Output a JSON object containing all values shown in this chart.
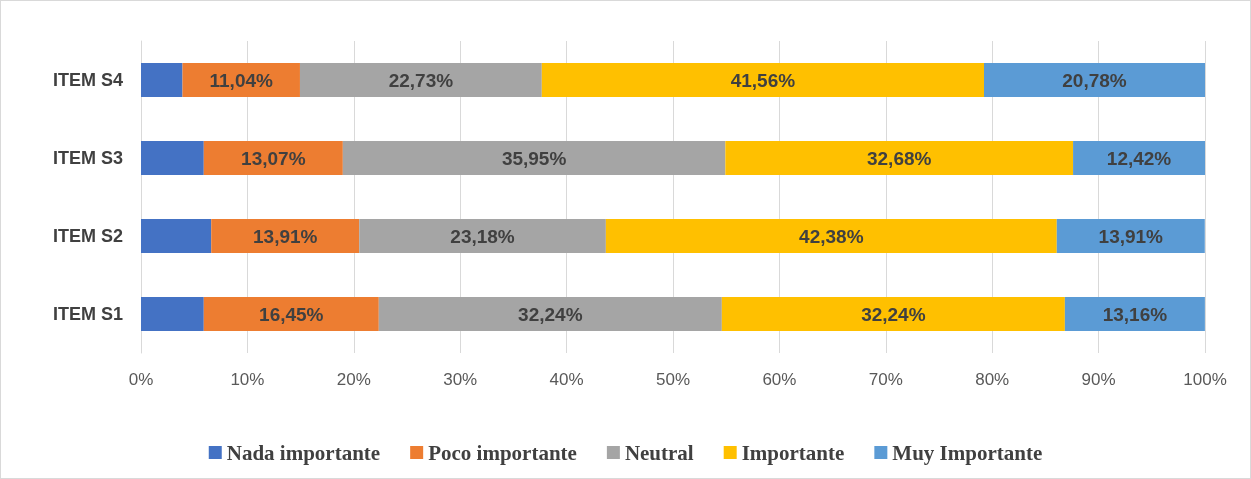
{
  "chart_data": {
    "type": "bar",
    "orientation": "horizontal",
    "stacked": true,
    "categories": [
      "ITEM S4",
      "ITEM S3",
      "ITEM S2",
      "ITEM S1"
    ],
    "series": [
      {
        "name": "Nada importante",
        "color": "#4472c4",
        "values": [
          3.9,
          5.9,
          6.6,
          5.9
        ],
        "value_labels": [
          null,
          null,
          null,
          null
        ]
      },
      {
        "name": "Poco importante",
        "color": "#ed7d31",
        "values": [
          11.04,
          13.07,
          13.91,
          16.45
        ],
        "value_labels": [
          "11,04%",
          "13,07%",
          "13,91%",
          "16,45%"
        ]
      },
      {
        "name": "Neutral",
        "color": "#a5a5a5",
        "values": [
          22.73,
          35.95,
          23.18,
          32.24
        ],
        "value_labels": [
          "22,73%",
          "35,95%",
          "23,18%",
          "32,24%"
        ]
      },
      {
        "name": "Importante",
        "color": "#ffc000",
        "values": [
          41.56,
          32.68,
          42.38,
          32.24
        ],
        "value_labels": [
          "41,56%",
          "32,68%",
          "42,38%",
          "32,24%"
        ]
      },
      {
        "name": "Muy Importante",
        "color": "#5b9bd5",
        "values": [
          20.78,
          12.42,
          13.91,
          13.16
        ],
        "value_labels": [
          "20,78%",
          "12,42%",
          "13,91%",
          "13,16%"
        ]
      }
    ],
    "xlim": [
      0,
      100
    ],
    "xticks": [
      {
        "value": 0,
        "label": "0%"
      },
      {
        "value": 10,
        "label": "10%"
      },
      {
        "value": 20,
        "label": "20%"
      },
      {
        "value": 30,
        "label": "30%"
      },
      {
        "value": 40,
        "label": "40%"
      },
      {
        "value": 50,
        "label": "50%"
      },
      {
        "value": 60,
        "label": "60%"
      },
      {
        "value": 70,
        "label": "70%"
      },
      {
        "value": 80,
        "label": "80%"
      },
      {
        "value": 90,
        "label": "90%"
      },
      {
        "value": 100,
        "label": "100%"
      }
    ],
    "grid": "x",
    "legend": "bottom"
  }
}
